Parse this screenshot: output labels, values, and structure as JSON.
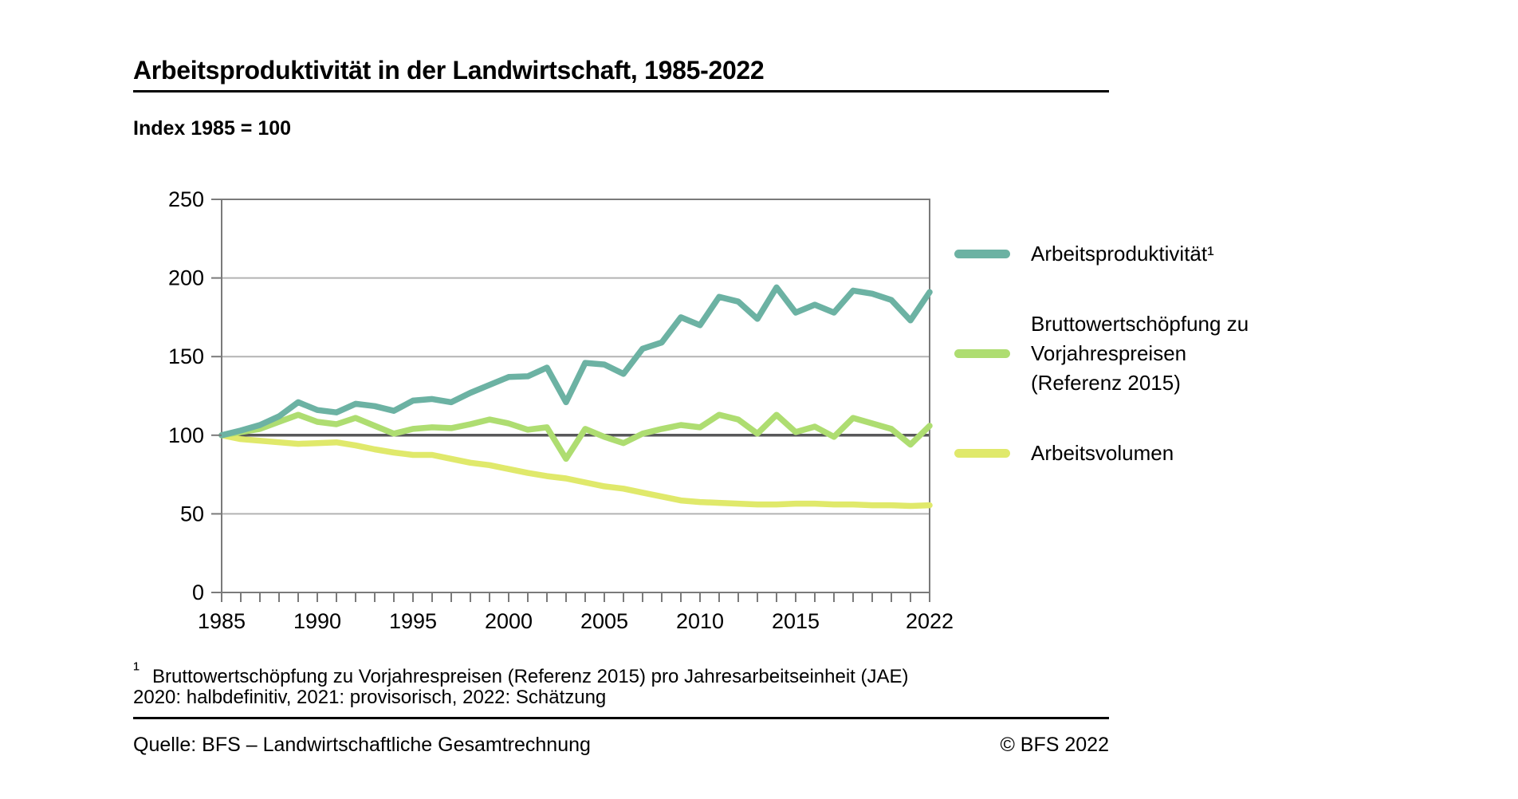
{
  "header": {
    "title": "Arbeitsproduktivität in der Landwirtschaft, 1985-2022",
    "subtitle": "Index 1985 = 100"
  },
  "chart_data": {
    "type": "line",
    "title": "Arbeitsproduktivität in der Landwirtschaft, 1985-2022",
    "subtitle": "Index 1985 = 100",
    "x": [
      1985,
      1986,
      1987,
      1988,
      1989,
      1990,
      1991,
      1992,
      1993,
      1994,
      1995,
      1996,
      1997,
      1998,
      1999,
      2000,
      2001,
      2002,
      2003,
      2004,
      2005,
      2006,
      2007,
      2008,
      2009,
      2010,
      2011,
      2012,
      2013,
      2014,
      2015,
      2016,
      2017,
      2018,
      2019,
      2020,
      2021,
      2022
    ],
    "series": [
      {
        "id": "arbeitsproduktivitaet",
        "name": "Arbeitsproduktivität¹",
        "label_lines": [
          "Arbeitsproduktivität¹"
        ],
        "color": "#6cb2a3",
        "values": [
          100,
          103,
          106.5,
          112,
          121,
          116,
          114.5,
          120,
          118.5,
          115.5,
          122,
          123,
          121,
          127,
          132,
          137,
          137.5,
          143,
          121,
          146,
          145,
          139,
          155,
          159,
          175,
          170,
          188,
          185,
          174,
          194,
          178,
          183,
          178,
          192,
          190,
          186,
          173,
          191
        ]
      },
      {
        "id": "bruttowertschoepfung",
        "name": "Bruttowertschöpfung zu Vorjahrespreisen (Referenz 2015)",
        "label_lines": [
          "Bruttowertschöpfung zu",
          "Vorjahrespreisen",
          "(Referenz 2015)"
        ],
        "color": "#aedd71",
        "values": [
          100,
          102,
          104,
          108.5,
          113,
          108.5,
          107,
          111,
          106,
          101,
          104,
          105,
          104.5,
          107,
          110,
          107.5,
          103.5,
          105,
          85,
          104,
          99,
          95,
          101,
          104,
          106.5,
          105,
          113,
          110,
          101,
          113,
          102,
          105.5,
          99,
          111,
          107.5,
          104,
          94,
          106
        ]
      },
      {
        "id": "arbeitsvolumen",
        "name": "Arbeitsvolumen",
        "label_lines": [
          "Arbeitsvolumen"
        ],
        "color": "#e0e96b",
        "values": [
          100,
          97.5,
          96.5,
          95.5,
          94.5,
          95,
          95.5,
          93.5,
          91,
          89,
          87.5,
          87.5,
          85,
          82.5,
          81,
          78.5,
          76,
          74,
          72.5,
          70,
          67.5,
          66,
          63.5,
          61,
          58.5,
          57.5,
          57,
          56.5,
          56,
          56,
          56.5,
          56.5,
          56,
          56,
          55.5,
          55.5,
          55,
          55.5
        ]
      }
    ],
    "ylim": [
      0,
      250
    ],
    "yticks": [
      0,
      50,
      100,
      150,
      200,
      250
    ],
    "xtick_labeled": [
      1985,
      1990,
      1995,
      2000,
      2005,
      2010,
      2015,
      2022
    ],
    "reference_line": 100,
    "grid": "horizontal",
    "legend_position": "right",
    "colors": {
      "grid": "#b3b3b3",
      "frame": "#7a7a7a",
      "tick": "#7a7a7a",
      "reference": "#58585a",
      "text": "#000000"
    }
  },
  "footnotes": {
    "marker": "¹",
    "line1": "Bruttowertschöpfung zu Vorjahrespreisen (Referenz 2015) pro Jahresarbeitseinheit (JAE)",
    "line2": "2020: halbdefinitiv, 2021: provisorisch, 2022: Schätzung"
  },
  "source": {
    "left": "Quelle: BFS – Landwirtschaftliche Gesamtrechnung",
    "right": "© BFS 2022"
  }
}
